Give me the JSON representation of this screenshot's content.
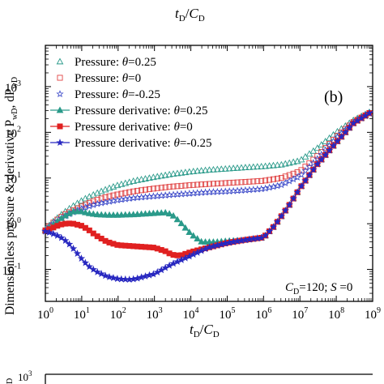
{
  "top_partial": {
    "xlabel_main": "t",
    "xlabel_sub1": "D",
    "sep": "/",
    "xlabel_main2": "C",
    "xlabel_sub2": "D"
  },
  "bottom_partial": {
    "ylabel_fragment": "D",
    "tick": "10",
    "tick_exp": "3"
  },
  "chart_data": {
    "type": "scatter",
    "panel_label": "(b)",
    "annotation": "C_D=120; S=0",
    "annotation_parts": {
      "c": "C",
      "c_sub": "D",
      "eq1": "=120; ",
      "s": "S",
      "eq2": " =0"
    },
    "xlabel": {
      "main": "t",
      "sub1": "D",
      "sep": "/",
      "main2": "C",
      "sub2": "D"
    },
    "ylabel": {
      "text": "Dimensionless pressure & derivative P",
      "sub1": "wD",
      "mid": ", dP",
      "sub2": "wD"
    },
    "x_scale": "log",
    "y_scale": "log",
    "xlim": [
      1,
      1000000000
    ],
    "ylim": [
      0.02,
      8000
    ],
    "x_ticks": [
      {
        "value": 1,
        "base": "10",
        "exp": "0"
      },
      {
        "value": 10,
        "base": "10",
        "exp": "1"
      },
      {
        "value": 100,
        "base": "10",
        "exp": "2"
      },
      {
        "value": 1000,
        "base": "10",
        "exp": "3"
      },
      {
        "value": 10000,
        "base": "10",
        "exp": "4"
      },
      {
        "value": 100000,
        "base": "10",
        "exp": "5"
      },
      {
        "value": 1000000,
        "base": "10",
        "exp": "6"
      },
      {
        "value": 10000000,
        "base": "10",
        "exp": "7"
      },
      {
        "value": 100000000,
        "base": "10",
        "exp": "8"
      },
      {
        "value": 1000000000,
        "base": "10",
        "exp": "9"
      }
    ],
    "y_ticks": [
      {
        "value": 0.1,
        "base": "10",
        "exp": "-1"
      },
      {
        "value": 1,
        "base": "10",
        "exp": "0"
      },
      {
        "value": 10,
        "base": "10",
        "exp": "1"
      },
      {
        "value": 100,
        "base": "10",
        "exp": "2"
      },
      {
        "value": 1000,
        "base": "10",
        "exp": "3"
      }
    ],
    "legend_placement": "top-left",
    "series": [
      {
        "name": "Pressure: θ=0.25",
        "legend": {
          "lead": "Pressure: ",
          "theta": "θ",
          "val": "=0.25"
        },
        "marker": "triangle-open",
        "color": "#2a9a8a",
        "points": [
          [
            1,
            0.75
          ],
          [
            1.5,
            1.05
          ],
          [
            2.5,
            1.5
          ],
          [
            4,
            2.0
          ],
          [
            7,
            2.7
          ],
          [
            12,
            3.5
          ],
          [
            25,
            4.6
          ],
          [
            50,
            5.8
          ],
          [
            100,
            7.0
          ],
          [
            300,
            8.8
          ],
          [
            1000,
            10.5
          ],
          [
            3000,
            12.2
          ],
          [
            10000,
            13.8
          ],
          [
            30000,
            15.0
          ],
          [
            100000,
            16.0
          ],
          [
            300000,
            17.0
          ],
          [
            1000000,
            18.0
          ],
          [
            3000000,
            19.5
          ],
          [
            10000000,
            24
          ],
          [
            30000000,
            45
          ],
          [
            100000000,
            100
          ],
          [
            300000000,
            185
          ],
          [
            1000000000,
            300
          ]
        ]
      },
      {
        "name": "Pressure: θ=0",
        "legend": {
          "lead": "Pressure: ",
          "theta": "θ",
          "val": "=0"
        },
        "marker": "square-open",
        "color": "#e04444",
        "points": [
          [
            1,
            0.72
          ],
          [
            1.5,
            1.0
          ],
          [
            2.5,
            1.35
          ],
          [
            4,
            1.7
          ],
          [
            7,
            2.1
          ],
          [
            12,
            2.6
          ],
          [
            25,
            3.3
          ],
          [
            50,
            3.9
          ],
          [
            100,
            4.4
          ],
          [
            300,
            5.2
          ],
          [
            1000,
            5.9
          ],
          [
            3000,
            6.5
          ],
          [
            10000,
            7.0
          ],
          [
            30000,
            7.4
          ],
          [
            100000,
            7.8
          ],
          [
            300000,
            8.2
          ],
          [
            1000000,
            8.7
          ],
          [
            3000000,
            10
          ],
          [
            10000000,
            14
          ],
          [
            30000000,
            30
          ],
          [
            100000000,
            80
          ],
          [
            300000000,
            170
          ],
          [
            1000000000,
            290
          ]
        ]
      },
      {
        "name": "Pressure: θ=-0.25",
        "legend": {
          "lead": "Pressure: ",
          "theta": "θ",
          "val": "=-0.25"
        },
        "marker": "star-open",
        "color": "#3a48c8",
        "points": [
          [
            1,
            0.7
          ],
          [
            1.5,
            0.95
          ],
          [
            2.5,
            1.25
          ],
          [
            4,
            1.55
          ],
          [
            7,
            1.9
          ],
          [
            12,
            2.25
          ],
          [
            25,
            2.7
          ],
          [
            50,
            3.0
          ],
          [
            100,
            3.3
          ],
          [
            300,
            3.7
          ],
          [
            1000,
            4.0
          ],
          [
            3000,
            4.3
          ],
          [
            10000,
            4.6
          ],
          [
            30000,
            4.9
          ],
          [
            100000,
            5.1
          ],
          [
            300000,
            5.4
          ],
          [
            1000000,
            5.8
          ],
          [
            3000000,
            7
          ],
          [
            10000000,
            11
          ],
          [
            30000000,
            26
          ],
          [
            100000000,
            75
          ],
          [
            300000000,
            165
          ],
          [
            1000000000,
            285
          ]
        ]
      },
      {
        "name": "Pressure derivative: θ=0.25",
        "legend": {
          "lead": "Pressure derivative: ",
          "theta": "θ",
          "val": "=0.25"
        },
        "marker": "triangle-filled",
        "color": "#2a9a8a",
        "points": [
          [
            1,
            0.7
          ],
          [
            1.5,
            0.9
          ],
          [
            2.5,
            1.25
          ],
          [
            4,
            1.6
          ],
          [
            6,
            1.85
          ],
          [
            10,
            1.85
          ],
          [
            15,
            1.7
          ],
          [
            25,
            1.6
          ],
          [
            50,
            1.55
          ],
          [
            100,
            1.55
          ],
          [
            300,
            1.6
          ],
          [
            1000,
            1.7
          ],
          [
            2000,
            1.75
          ],
          [
            3000,
            1.6
          ],
          [
            5000,
            1.1
          ],
          [
            10000,
            0.6
          ],
          [
            20000,
            0.4
          ],
          [
            50000,
            0.4
          ],
          [
            100000,
            0.42
          ],
          [
            300000,
            0.44
          ],
          [
            1000000,
            0.5
          ],
          [
            2000000,
            0.9
          ],
          [
            5000000,
            2.5
          ],
          [
            10000000,
            6
          ],
          [
            30000000,
            20
          ],
          [
            100000000,
            60
          ],
          [
            300000000,
            160
          ],
          [
            1000000000,
            290
          ]
        ]
      },
      {
        "name": "Pressure derivative: θ=0",
        "legend": {
          "lead": "Pressure derivative: ",
          "theta": "θ",
          "val": "=0"
        },
        "marker": "square-filled",
        "color": "#e02020",
        "points": [
          [
            1,
            0.7
          ],
          [
            1.5,
            0.8
          ],
          [
            2.5,
            0.95
          ],
          [
            4,
            1.02
          ],
          [
            6,
            1.0
          ],
          [
            10,
            0.9
          ],
          [
            15,
            0.75
          ],
          [
            25,
            0.55
          ],
          [
            50,
            0.4
          ],
          [
            100,
            0.34
          ],
          [
            300,
            0.32
          ],
          [
            1000,
            0.3
          ],
          [
            2000,
            0.25
          ],
          [
            3000,
            0.21
          ],
          [
            5000,
            0.2
          ],
          [
            10000,
            0.24
          ],
          [
            30000,
            0.3
          ],
          [
            100000,
            0.38
          ],
          [
            300000,
            0.44
          ],
          [
            1000000,
            0.5
          ],
          [
            2000000,
            0.9
          ],
          [
            5000000,
            2.5
          ],
          [
            10000000,
            6
          ],
          [
            30000000,
            20
          ],
          [
            100000000,
            60
          ],
          [
            300000000,
            160
          ],
          [
            1000000000,
            290
          ]
        ]
      },
      {
        "name": "Pressure derivative: θ=-0.25",
        "legend": {
          "lead": "Pressure derivative: ",
          "theta": "θ",
          "val": "=-0.25"
        },
        "marker": "star-filled",
        "color": "#2828c0",
        "points": [
          [
            1,
            0.68
          ],
          [
            1.5,
            0.62
          ],
          [
            2.5,
            0.52
          ],
          [
            4,
            0.4
          ],
          [
            6,
            0.28
          ],
          [
            10,
            0.17
          ],
          [
            15,
            0.12
          ],
          [
            25,
            0.09
          ],
          [
            50,
            0.07
          ],
          [
            100,
            0.062
          ],
          [
            200,
            0.06
          ],
          [
            300,
            0.062
          ],
          [
            1000,
            0.08
          ],
          [
            3000,
            0.13
          ],
          [
            10000,
            0.2
          ],
          [
            30000,
            0.3
          ],
          [
            100000,
            0.38
          ],
          [
            300000,
            0.44
          ],
          [
            1000000,
            0.5
          ],
          [
            2000000,
            0.9
          ],
          [
            5000000,
            2.5
          ],
          [
            10000000,
            6
          ],
          [
            30000000,
            20
          ],
          [
            100000000,
            60
          ],
          [
            300000000,
            160
          ],
          [
            1000000000,
            290
          ]
        ]
      }
    ]
  }
}
